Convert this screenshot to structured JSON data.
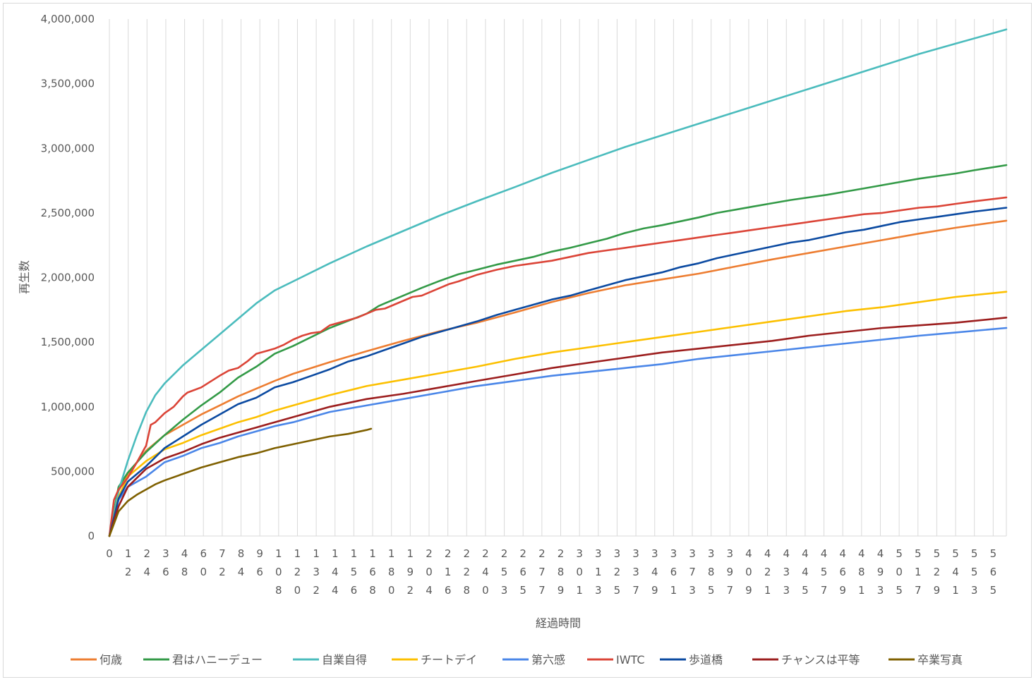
{
  "chart_data": {
    "type": "line",
    "title": "",
    "xlabel": "経過時間",
    "ylabel": "再生数",
    "ylim": [
      0,
      4000000
    ],
    "xlim": [
      0,
      586
    ],
    "yticks": [
      0,
      500000,
      1000000,
      1500000,
      2000000,
      2500000,
      3000000,
      3500000,
      4000000
    ],
    "ytick_labels": [
      "0",
      "500,000",
      "1,000,000",
      "1,500,000",
      "2,000,000",
      "2,500,000",
      "3,000,000",
      "3,500,000",
      "4,000,000"
    ],
    "xtick_labels": [
      "0",
      "12",
      "24",
      "36",
      "48",
      "60",
      "72",
      "84",
      "96",
      "108",
      "120",
      "132",
      "144",
      "156",
      "168",
      "180",
      "192",
      "204",
      "216",
      "228",
      "240",
      "253",
      "265",
      "277",
      "289",
      "301",
      "313",
      "325",
      "337",
      "349",
      "361",
      "373",
      "385",
      "397",
      "409",
      "421",
      "433",
      "445",
      "457",
      "469",
      "481",
      "493",
      "505",
      "517",
      "529",
      "541",
      "553",
      "565"
    ],
    "grid": "vertical",
    "legend_position": "bottom",
    "series": [
      {
        "name": "何歳",
        "color": "#ED7D31",
        "x": [
          0,
          6,
          12,
          24,
          36,
          48,
          60,
          72,
          84,
          96,
          108,
          120,
          144,
          168,
          192,
          216,
          240,
          265,
          289,
          313,
          337,
          361,
          385,
          409,
          433,
          457,
          481,
          505,
          529,
          553,
          586
        ],
        "values": [
          0,
          350000,
          480000,
          660000,
          780000,
          860000,
          940000,
          1010000,
          1080000,
          1140000,
          1200000,
          1255000,
          1345000,
          1430000,
          1510000,
          1585000,
          1650000,
          1730000,
          1810000,
          1880000,
          1940000,
          1985000,
          2030000,
          2085000,
          2140000,
          2190000,
          2240000,
          2290000,
          2340000,
          2385000,
          2440000
        ]
      },
      {
        "name": "君はハニーデュー",
        "color": "#339A47",
        "x": [
          0,
          6,
          12,
          24,
          36,
          48,
          60,
          72,
          84,
          96,
          108,
          120,
          144,
          168,
          176,
          180,
          192,
          204,
          216,
          228,
          240,
          253,
          265,
          277,
          289,
          301,
          313,
          325,
          337,
          349,
          361,
          373,
          385,
          397,
          409,
          421,
          433,
          445,
          457,
          469,
          481,
          493,
          505,
          517,
          529,
          541,
          553,
          565,
          586
        ],
        "values": [
          0,
          380000,
          490000,
          650000,
          780000,
          900000,
          1010000,
          1110000,
          1225000,
          1310000,
          1410000,
          1470000,
          1610000,
          1720000,
          1780000,
          1800000,
          1860000,
          1920000,
          1975000,
          2025000,
          2060000,
          2100000,
          2130000,
          2160000,
          2200000,
          2230000,
          2265000,
          2300000,
          2345000,
          2380000,
          2405000,
          2435000,
          2465000,
          2500000,
          2525000,
          2550000,
          2575000,
          2600000,
          2620000,
          2640000,
          2665000,
          2690000,
          2715000,
          2740000,
          2765000,
          2785000,
          2805000,
          2830000,
          2870000
        ]
      },
      {
        "name": "自業自得",
        "color": "#4BBCBD",
        "x": [
          0,
          6,
          12,
          18,
          24,
          30,
          36,
          48,
          60,
          72,
          84,
          96,
          108,
          120,
          144,
          168,
          192,
          216,
          240,
          265,
          289,
          313,
          337,
          361,
          385,
          409,
          433,
          457,
          481,
          505,
          529,
          553,
          586
        ],
        "values": [
          0,
          350000,
          580000,
          780000,
          960000,
          1090000,
          1180000,
          1320000,
          1440000,
          1560000,
          1680000,
          1800000,
          1900000,
          1970000,
          2110000,
          2240000,
          2360000,
          2480000,
          2590000,
          2700000,
          2810000,
          2910000,
          3010000,
          3100000,
          3190000,
          3280000,
          3370000,
          3460000,
          3550000,
          3640000,
          3730000,
          3810000,
          3920000
        ]
      },
      {
        "name": "チートデイ",
        "color": "#FCC000",
        "x": [
          0,
          6,
          12,
          24,
          36,
          48,
          60,
          72,
          84,
          96,
          108,
          120,
          144,
          168,
          192,
          216,
          240,
          265,
          289,
          313,
          337,
          361,
          385,
          409,
          433,
          457,
          481,
          505,
          529,
          553,
          586
        ],
        "values": [
          0,
          300000,
          460000,
          580000,
          670000,
          720000,
          780000,
          830000,
          880000,
          920000,
          970000,
          1010000,
          1090000,
          1160000,
          1210000,
          1260000,
          1310000,
          1370000,
          1420000,
          1460000,
          1500000,
          1540000,
          1580000,
          1620000,
          1660000,
          1700000,
          1740000,
          1770000,
          1810000,
          1850000,
          1890000
        ]
      },
      {
        "name": "第六感",
        "color": "#4A86E8",
        "x": [
          0,
          6,
          12,
          24,
          36,
          48,
          60,
          72,
          84,
          96,
          108,
          120,
          144,
          168,
          192,
          216,
          240,
          265,
          289,
          313,
          337,
          361,
          385,
          409,
          433,
          457,
          481,
          505,
          529,
          553,
          586
        ],
        "values": [
          0,
          280000,
          380000,
          460000,
          570000,
          620000,
          680000,
          720000,
          770000,
          810000,
          850000,
          880000,
          960000,
          1010000,
          1060000,
          1110000,
          1160000,
          1200000,
          1240000,
          1270000,
          1300000,
          1330000,
          1370000,
          1400000,
          1430000,
          1460000,
          1490000,
          1520000,
          1550000,
          1575000,
          1610000
        ]
      },
      {
        "name": "IWTC",
        "color": "#DB4437",
        "x": [
          0,
          3,
          6,
          12,
          18,
          24,
          27,
          30,
          36,
          42,
          48,
          51,
          60,
          72,
          78,
          84,
          90,
          96,
          102,
          108,
          114,
          120,
          126,
          132,
          138,
          144,
          150,
          156,
          162,
          168,
          174,
          180,
          186,
          192,
          198,
          204,
          210,
          216,
          222,
          228,
          240,
          253,
          265,
          277,
          289,
          301,
          313,
          325,
          337,
          349,
          361,
          373,
          385,
          397,
          409,
          421,
          433,
          445,
          457,
          469,
          481,
          493,
          505,
          517,
          529,
          541,
          553,
          565,
          586
        ],
        "values": [
          0,
          280000,
          360000,
          450000,
          570000,
          700000,
          860000,
          880000,
          950000,
          1000000,
          1080000,
          1110000,
          1150000,
          1240000,
          1280000,
          1300000,
          1350000,
          1410000,
          1430000,
          1450000,
          1480000,
          1520000,
          1550000,
          1570000,
          1580000,
          1630000,
          1650000,
          1670000,
          1690000,
          1720000,
          1750000,
          1760000,
          1790000,
          1820000,
          1850000,
          1860000,
          1890000,
          1920000,
          1950000,
          1970000,
          2020000,
          2060000,
          2090000,
          2110000,
          2130000,
          2160000,
          2190000,
          2210000,
          2230000,
          2250000,
          2270000,
          2290000,
          2310000,
          2330000,
          2350000,
          2370000,
          2390000,
          2410000,
          2430000,
          2450000,
          2470000,
          2490000,
          2500000,
          2520000,
          2540000,
          2550000,
          2570000,
          2590000,
          2620000
        ]
      },
      {
        "name": "歩道橋",
        "color": "#0B4AA1",
        "x": [
          0,
          6,
          12,
          24,
          36,
          48,
          60,
          72,
          84,
          96,
          108,
          120,
          132,
          144,
          156,
          168,
          180,
          192,
          204,
          216,
          228,
          240,
          253,
          265,
          277,
          289,
          301,
          313,
          325,
          337,
          349,
          361,
          373,
          385,
          397,
          409,
          421,
          433,
          445,
          457,
          469,
          481,
          493,
          505,
          517,
          529,
          541,
          553,
          565,
          586
        ],
        "values": [
          0,
          290000,
          420000,
          540000,
          680000,
          770000,
          860000,
          940000,
          1020000,
          1070000,
          1150000,
          1190000,
          1240000,
          1290000,
          1350000,
          1390000,
          1440000,
          1490000,
          1540000,
          1580000,
          1620000,
          1660000,
          1710000,
          1750000,
          1790000,
          1830000,
          1860000,
          1900000,
          1940000,
          1980000,
          2010000,
          2040000,
          2080000,
          2110000,
          2150000,
          2180000,
          2210000,
          2240000,
          2270000,
          2290000,
          2320000,
          2350000,
          2370000,
          2400000,
          2430000,
          2450000,
          2470000,
          2490000,
          2510000,
          2540000
        ]
      },
      {
        "name": "チャンスは平等",
        "color": "#9C1E1E",
        "x": [
          0,
          6,
          12,
          24,
          36,
          48,
          60,
          72,
          84,
          96,
          108,
          120,
          144,
          168,
          192,
          216,
          240,
          265,
          289,
          313,
          337,
          361,
          385,
          409,
          433,
          457,
          481,
          505,
          529,
          553,
          586
        ],
        "values": [
          0,
          230000,
          380000,
          520000,
          600000,
          650000,
          710000,
          760000,
          800000,
          840000,
          880000,
          920000,
          1000000,
          1060000,
          1100000,
          1150000,
          1200000,
          1250000,
          1300000,
          1340000,
          1380000,
          1420000,
          1450000,
          1480000,
          1510000,
          1550000,
          1580000,
          1610000,
          1630000,
          1650000,
          1690000
        ]
      },
      {
        "name": "卒業写真",
        "color": "#7F6000",
        "x": [
          0,
          6,
          12,
          18,
          24,
          30,
          36,
          48,
          60,
          72,
          84,
          96,
          108,
          120,
          132,
          144,
          156,
          168,
          171
        ],
        "values": [
          0,
          190000,
          270000,
          320000,
          360000,
          400000,
          430000,
          480000,
          530000,
          570000,
          610000,
          640000,
          680000,
          710000,
          740000,
          770000,
          790000,
          820000,
          830000
        ]
      }
    ]
  }
}
